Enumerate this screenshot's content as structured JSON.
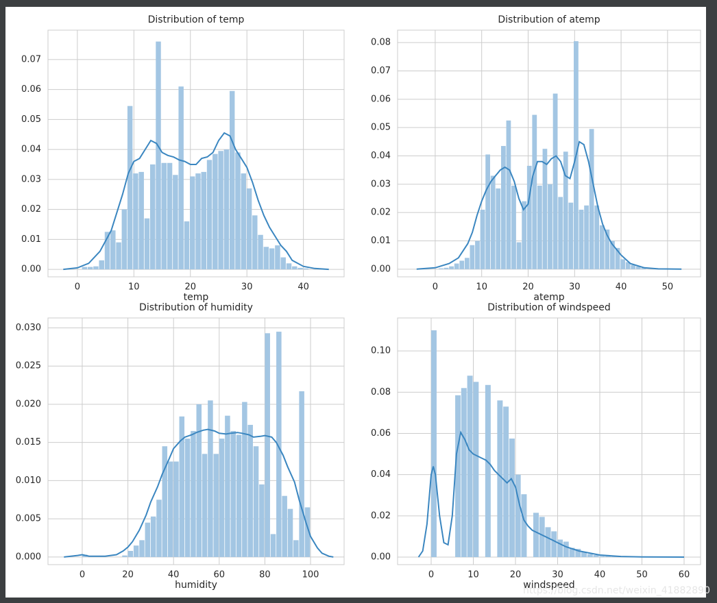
{
  "chart_data": [
    {
      "type": "histogram",
      "title": "Distribution of temp",
      "xlabel": "temp",
      "color": "#a3c6e3",
      "line_color": "#3a86c0",
      "grid": true,
      "xlim": [
        -5.2,
        47.2
      ],
      "ylim": [
        -0.0025,
        0.0798
      ],
      "xticks": [
        0,
        10,
        20,
        30,
        40
      ],
      "yticks": [
        {
          "value": 0,
          "label": "0.00"
        },
        0.01,
        0.02,
        0.03,
        0.04,
        0.05,
        0.06,
        0.07
      ],
      "bins": [
        0.82,
        1.82,
        2.83,
        3.83,
        4.84,
        5.84,
        6.85,
        7.85,
        8.86,
        9.86,
        10.86,
        11.87,
        12.87,
        13.88,
        14.88,
        15.89,
        16.89,
        17.9,
        18.9,
        19.91,
        20.91,
        21.91,
        22.92,
        23.92,
        24.93,
        25.93,
        26.94,
        27.94,
        28.95,
        29.95,
        30.96,
        31.96,
        32.96,
        33.97,
        34.97,
        35.98,
        36.98,
        37.99,
        38.99,
        40.0,
        41.0
      ],
      "values": [
        0.0008,
        0.0008,
        0.001,
        0.003,
        0.0125,
        0.013,
        0.009,
        0.02,
        0.0545,
        0.032,
        0.0325,
        0.017,
        0.035,
        0.076,
        0.0355,
        0.0355,
        0.0315,
        0.061,
        0.016,
        0.031,
        0.032,
        0.0325,
        0.0365,
        0.0385,
        0.0395,
        0.04,
        0.0595,
        0.039,
        0.032,
        0.027,
        0.018,
        0.0115,
        0.0075,
        0.007,
        0.008,
        0.004,
        0.002,
        0.001,
        0.0005,
        0.0003
      ],
      "kde": {
        "x": [
          -2.5,
          0,
          2,
          4,
          6,
          8,
          9,
          10,
          11,
          12,
          13,
          14,
          15,
          16,
          17,
          18,
          19,
          20,
          21,
          22,
          23,
          24,
          25,
          26,
          27,
          28,
          29,
          30,
          31,
          32,
          33,
          34,
          35,
          36,
          37,
          38,
          40,
          42,
          44.5
        ],
        "values": [
          0,
          0.0005,
          0.002,
          0.006,
          0.013,
          0.025,
          0.032,
          0.036,
          0.037,
          0.04,
          0.043,
          0.042,
          0.039,
          0.038,
          0.0375,
          0.0365,
          0.036,
          0.035,
          0.035,
          0.037,
          0.0375,
          0.039,
          0.043,
          0.0455,
          0.0445,
          0.04,
          0.037,
          0.034,
          0.029,
          0.023,
          0.018,
          0.014,
          0.011,
          0.008,
          0.006,
          0.003,
          0.001,
          0.0003,
          0
        ]
      }
    },
    {
      "type": "histogram",
      "title": "Distribution of atemp",
      "xlabel": "atemp",
      "color": "#a3c6e3",
      "line_color": "#3a86c0",
      "grid": true,
      "xlim": [
        -8.1,
        57.1
      ],
      "ylim": [
        -0.0027,
        0.0844
      ],
      "xticks": [
        0,
        10,
        20,
        30,
        40,
        50
      ],
      "yticks": [
        {
          "value": 0,
          "label": "0.00"
        },
        0.01,
        0.02,
        0.03,
        0.04,
        0.05,
        0.06,
        0.07,
        0.08
      ],
      "bins": [
        0.76,
        1.88,
        2.99,
        4.11,
        5.23,
        6.35,
        7.46,
        8.58,
        9.7,
        10.82,
        11.93,
        13.05,
        14.17,
        15.29,
        16.4,
        17.52,
        18.64,
        19.76,
        20.87,
        21.99,
        23.11,
        24.22,
        25.34,
        26.46,
        27.58,
        28.69,
        29.81,
        30.93,
        32.05,
        33.16,
        34.28,
        35.4,
        36.52,
        37.63,
        38.75,
        39.87,
        40.99,
        42.1,
        43.22,
        44.34,
        45.46
      ],
      "values": [
        0.0003,
        0.0005,
        0.001,
        0.002,
        0.003,
        0.004,
        0.0085,
        0.01,
        0.021,
        0.0405,
        0.033,
        0.0285,
        0.0435,
        0.0525,
        0.0295,
        0.0095,
        0.024,
        0.0365,
        0.0545,
        0.0295,
        0.0425,
        0.03,
        0.062,
        0.0255,
        0.0415,
        0.0235,
        0.0805,
        0.021,
        0.0225,
        0.0495,
        0.0225,
        0.0155,
        0.014,
        0.01,
        0.0075,
        0.0035,
        0.0025,
        0.0015,
        0.001,
        0.0005
      ],
      "kde": {
        "x": [
          -4,
          0,
          3,
          5,
          7,
          8,
          9,
          10,
          11,
          12,
          13,
          14,
          15,
          16,
          17,
          18,
          19,
          20,
          21,
          22,
          23,
          24,
          25,
          26,
          27,
          28,
          29,
          30,
          31,
          32,
          33,
          34,
          35,
          36,
          37,
          38,
          39,
          40,
          42,
          45,
          48,
          53
        ],
        "values": [
          0,
          0.0005,
          0.002,
          0.004,
          0.009,
          0.013,
          0.019,
          0.024,
          0.028,
          0.031,
          0.033,
          0.035,
          0.036,
          0.035,
          0.031,
          0.025,
          0.021,
          0.023,
          0.033,
          0.038,
          0.038,
          0.037,
          0.039,
          0.04,
          0.038,
          0.033,
          0.032,
          0.038,
          0.045,
          0.044,
          0.038,
          0.03,
          0.022,
          0.016,
          0.012,
          0.009,
          0.007,
          0.005,
          0.002,
          0.0005,
          0.0001,
          0
        ]
      }
    },
    {
      "type": "histogram",
      "title": "Distribution of humidity",
      "xlabel": "humidity",
      "color": "#a3c6e3",
      "line_color": "#3a86c0",
      "grid": true,
      "xlim": [
        -15,
        114.7
      ],
      "ylim": [
        -0.001,
        0.0313
      ],
      "xticks": [
        0,
        20,
        40,
        60,
        80,
        100
      ],
      "yticks": [
        {
          "value": 0,
          "label": "0.000"
        },
        0.005,
        {
          "value": 0.01,
          "label": "0.010"
        },
        0.015,
        {
          "value": 0.02,
          "label": "0.020"
        },
        0.025,
        {
          "value": 0.03,
          "label": "0.030"
        }
      ],
      "bins": [
        0,
        2.5,
        5,
        7.5,
        10,
        12.5,
        15,
        17.5,
        20,
        22.5,
        25,
        27.5,
        30,
        32.5,
        35,
        37.5,
        40,
        42.5,
        45,
        47.5,
        50,
        52.5,
        55,
        57.5,
        60,
        62.5,
        65,
        67.5,
        70,
        72.5,
        75,
        77.5,
        80,
        82.5,
        85,
        87.5,
        90,
        92.5,
        95,
        97.5,
        100
      ],
      "values": [
        0.0003,
        0,
        0,
        0,
        0,
        0,
        0,
        0.0002,
        0.0008,
        0.0015,
        0.0022,
        0.0045,
        0.0053,
        0.0075,
        0.0145,
        0.0125,
        0.0125,
        0.0184,
        0.0155,
        0.0165,
        0.02,
        0.0135,
        0.0205,
        0.0135,
        0.0155,
        0.0185,
        0.0165,
        0.016,
        0.0203,
        0.0173,
        0.0145,
        0.0095,
        0.0293,
        0.003,
        0.0295,
        0.008,
        0.0063,
        0.0022,
        0.0217,
        0.0065
      ],
      "kde": {
        "x": [
          -8,
          -2,
          0,
          3,
          10,
          15,
          18,
          20,
          22,
          25,
          28,
          30,
          33,
          35,
          38,
          40,
          43,
          45,
          48,
          50,
          53,
          55,
          58,
          60,
          63,
          65,
          68,
          70,
          73,
          75,
          78,
          80,
          83,
          85,
          88,
          90,
          93,
          95,
          98,
          100,
          103,
          105,
          108,
          110
        ],
        "values": [
          0,
          0.0002,
          0.0003,
          0.0001,
          0.0001,
          0.0003,
          0.0008,
          0.0013,
          0.002,
          0.0035,
          0.0055,
          0.0072,
          0.0092,
          0.0108,
          0.0128,
          0.0142,
          0.0152,
          0.0157,
          0.016,
          0.0163,
          0.0166,
          0.0167,
          0.0165,
          0.0162,
          0.0161,
          0.0162,
          0.0163,
          0.0162,
          0.016,
          0.0157,
          0.0158,
          0.0159,
          0.0157,
          0.015,
          0.0133,
          0.0118,
          0.0098,
          0.0075,
          0.0045,
          0.0027,
          0.0012,
          0.0005,
          0.0001,
          0
        ]
      }
    },
    {
      "type": "histogram",
      "title": "Distribution of windspeed",
      "xlabel": "windspeed",
      "color": "#a3c6e3",
      "line_color": "#3a86c0",
      "grid": true,
      "xlim": [
        -7.97,
        63.9
      ],
      "ylim": [
        -0.00365,
        0.116
      ],
      "xticks": [
        0,
        10,
        20,
        30,
        40,
        50,
        60
      ],
      "yticks": [
        {
          "value": 0,
          "label": "0.00"
        },
        0.02,
        0.04,
        0.06,
        0.08,
        {
          "value": 0.1,
          "label": "0.10"
        }
      ],
      "bins": [
        0,
        1.42,
        2.85,
        4.27,
        5.7,
        7.12,
        8.55,
        9.97,
        11.4,
        12.82,
        14.25,
        15.67,
        17.1,
        18.52,
        19.95,
        21.37,
        22.8,
        24.22,
        25.65,
        27.07,
        28.5,
        29.92,
        31.35,
        32.77,
        34.2,
        35.62,
        37.05,
        38.47,
        39.9,
        41.32,
        42.75,
        44.17,
        45.6,
        47.02,
        48.45,
        49.87,
        51.3,
        52.72,
        54.15,
        55.57,
        57.0
      ],
      "values": [
        0.11,
        0,
        0,
        0,
        0.0785,
        0.082,
        0.088,
        0.085,
        0,
        0.0835,
        0,
        0.076,
        0.073,
        0.0575,
        0.04,
        0.0305,
        0,
        0.0215,
        0.0195,
        0.0145,
        0.0125,
        0.0085,
        0.0075,
        0.0045,
        0.004,
        0.0025,
        0.0015,
        0.001,
        0.0005,
        0.0005,
        0.0003,
        0.0002,
        0.0002,
        0.0001,
        0.0001,
        0.0001,
        0,
        0,
        0,
        0.0001
      ],
      "kde": {
        "x": [
          -3,
          -2,
          -1,
          0,
          0.5,
          1,
          2,
          3,
          4,
          5,
          6,
          7,
          8,
          9,
          10,
          11,
          12,
          13,
          14,
          15,
          16,
          17,
          18,
          19,
          20,
          21,
          22,
          23,
          24,
          25,
          26,
          27,
          28,
          29,
          30,
          32,
          35,
          40,
          45,
          50,
          60
        ],
        "values": [
          0,
          0.003,
          0.016,
          0.04,
          0.044,
          0.04,
          0.02,
          0.007,
          0.006,
          0.02,
          0.05,
          0.0605,
          0.057,
          0.052,
          0.05,
          0.049,
          0.048,
          0.047,
          0.045,
          0.042,
          0.04,
          0.038,
          0.036,
          0.038,
          0.034,
          0.025,
          0.018,
          0.015,
          0.013,
          0.012,
          0.011,
          0.01,
          0.009,
          0.008,
          0.007,
          0.005,
          0.003,
          0.001,
          0.0003,
          0.0001,
          0
        ]
      }
    }
  ],
  "watermark": "https://blog.csdn.net/weixin_41882890"
}
